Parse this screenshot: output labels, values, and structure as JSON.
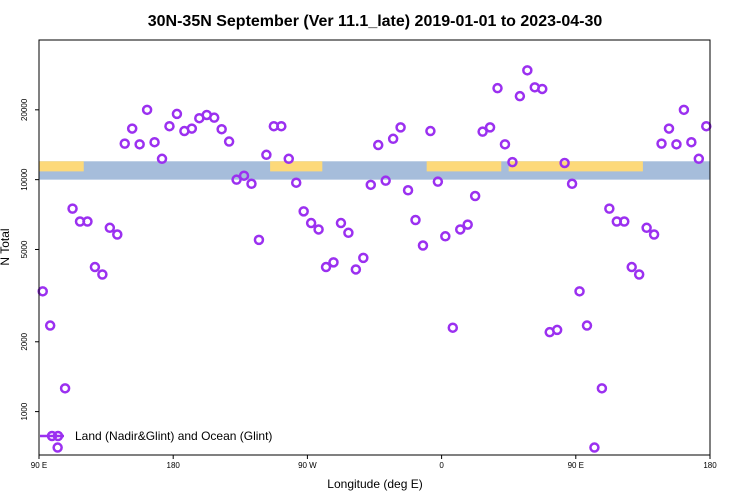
{
  "chart_data": {
    "type": "scatter",
    "title": "30N-35N September (Ver 11.1_late)   2019-01-01 to 2023-04-30",
    "xlabel": "Longitude (deg E)",
    "ylabel": "N Total",
    "y_scale": "log",
    "ylim": [
      650,
      40000
    ],
    "x_ticks": [
      {
        "label": "90 E",
        "pos": 0
      },
      {
        "label": "180",
        "pos": 90
      },
      {
        "label": "90 W",
        "pos": 180
      },
      {
        "label": "0",
        "pos": 270
      },
      {
        "label": "90 E",
        "pos": 360
      },
      {
        "label": "180",
        "pos": 450
      }
    ],
    "xlim": [
      0,
      450
    ],
    "y_ticks": [
      1000,
      2000,
      5000,
      10000,
      20000
    ],
    "legend": {
      "label": "Land (Nadir&Glint) and Ocean (Glint)",
      "position": "bottom-left"
    },
    "colors": {
      "marker": "#9b30f0",
      "ocean": "#a6bddb",
      "land": "#fdd97a"
    },
    "surface_band": {
      "y_range": [
        10000,
        12000
      ],
      "land_segments": [
        [
          0,
          30
        ],
        [
          155,
          190
        ],
        [
          260,
          310
        ],
        [
          315,
          405
        ]
      ]
    },
    "series": [
      {
        "x": [
          2.5,
          7.5,
          12.5,
          17.5,
          22.5,
          27.5,
          32.5,
          37.5,
          42.5,
          47.5,
          52.5,
          57.5,
          62.5,
          67.5,
          72.5,
          77.5,
          82.5,
          87.5,
          92.5,
          97.5,
          102.5,
          107.5,
          112.5,
          117.5,
          122.5,
          127.5,
          132.5,
          137.5,
          142.5,
          147.5,
          152.5,
          157.5,
          162.5,
          167.5,
          172.5,
          177.5,
          182.5,
          187.5,
          192.5,
          197.5,
          202.5,
          207.5,
          212.5,
          217.5,
          222.5,
          227.5,
          232.5,
          237.5,
          242.5,
          247.5,
          252.5,
          257.5,
          262.5,
          267.5,
          272.5,
          277.5,
          282.5,
          287.5,
          292.5,
          297.5,
          302.5,
          307.5,
          312.5,
          317.5,
          322.5,
          327.5,
          332.5,
          337.5,
          342.5,
          347.5,
          352.5,
          357.5,
          362.5,
          367.5,
          372.5,
          377.5,
          382.5,
          387.5,
          392.5,
          397.5,
          402.5,
          407.5,
          412.5,
          417.5,
          422.5,
          427.5,
          432.5,
          437.5,
          442.5,
          447.5
        ],
        "y": [
          3300,
          2350,
          700,
          1260,
          7500,
          6600,
          6600,
          4200,
          3900,
          6200,
          5800,
          14300,
          16600,
          14200,
          20000,
          14500,
          12300,
          17000,
          19200,
          16200,
          16600,
          18400,
          19000,
          18500,
          16500,
          14600,
          10000,
          10400,
          9600,
          5500,
          12800,
          17000,
          17000,
          12300,
          9700,
          7300,
          6500,
          6100,
          4200,
          4400,
          6500,
          5900,
          4100,
          4600,
          9500,
          14100,
          9900,
          15000,
          16800,
          9000,
          6700,
          5200,
          16200,
          9800,
          5700,
          2300,
          6100,
          6400,
          8500,
          16100,
          16800,
          24800,
          14200,
          11900,
          22900,
          29600,
          25000,
          24600,
          2200,
          2250,
          11800,
          9600,
          3300,
          2350,
          700,
          1260,
          7500,
          6600,
          6600,
          4200,
          3900,
          6200,
          5800,
          14300,
          16600,
          14200,
          20000,
          14500,
          12300,
          17000
        ]
      }
    ]
  }
}
